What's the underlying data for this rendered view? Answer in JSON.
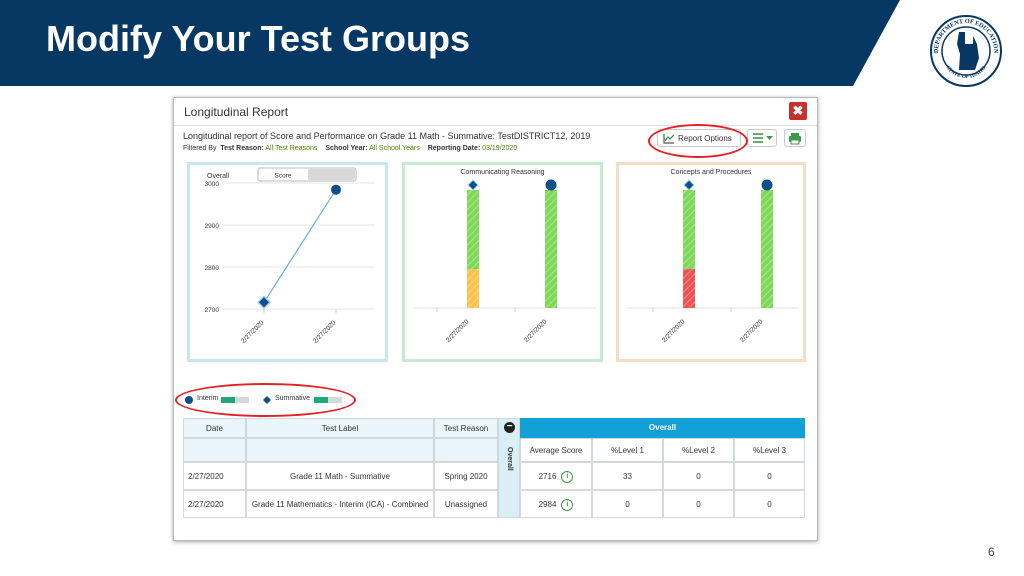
{
  "slide": {
    "title": "Modify Your Test Groups",
    "page_number": "6",
    "seal_top_text": "DEPARTMENT OF EDUCATION",
    "seal_bottom_text": "STATE OF IDAHO"
  },
  "colors": {
    "title_bar": "#073763",
    "highlight_ring": "#e32227",
    "close": "#c9302c",
    "overall_header": "#12a0d7",
    "green": "#7ed957",
    "orange": "#ffc04d",
    "red": "#f05252",
    "marker_blue": "#0b4f8c"
  },
  "report": {
    "title": "Longitudinal Report",
    "close_icon": "x-icon",
    "subtitle": "Longitudinal report of Score and Performance on Grade 11 Math - Summative: TestDISTRICT12, 2019",
    "filter_label": "Filtered By",
    "test_reason_label": "Test Reason:",
    "test_reason_value": "All Test Reasons",
    "school_year_label": "School Year:",
    "school_year_value": "All School Years",
    "reporting_date_label": "Reporting Date:",
    "reporting_date_value": "03/19/2020",
    "report_options_label": "Report Options",
    "report_options_icon": "line-chart-icon",
    "settings_icon": "list-settings-icon",
    "print_icon": "print-icon"
  },
  "overall_panel": {
    "label": "Overall",
    "toggle_label": "Score",
    "y_ticks": [
      "3000",
      "2900",
      "2800",
      "2700"
    ],
    "x_labels": [
      "2/27/2020",
      "2/27/2020"
    ]
  },
  "legend": {
    "interim": "Interim",
    "summative": "Summative"
  },
  "chart_data": [
    {
      "type": "line",
      "title": "Overall",
      "x": [
        "2/27/2020",
        "2/27/2020"
      ],
      "series": [
        {
          "name": "Summative",
          "values": [
            2716,
            null
          ]
        },
        {
          "name": "Interim",
          "values": [
            null,
            2984
          ]
        }
      ],
      "ylim": [
        2700,
        3000
      ],
      "y_ticks": [
        2700,
        2800,
        2900,
        3000
      ]
    },
    {
      "type": "bar",
      "title": "Communicating Reasoning",
      "categories": [
        "2/27/2020",
        "2/27/2020"
      ],
      "stacks": [
        [
          {
            "level": "below",
            "color": "orange",
            "fraction": 0.33
          },
          {
            "level": "above",
            "color": "green",
            "fraction": 0.67
          }
        ],
        [
          {
            "level": "above",
            "color": "green",
            "fraction": 1.0
          }
        ]
      ]
    },
    {
      "type": "bar",
      "title": "Concepts and Procedures",
      "categories": [
        "2/27/2020",
        "2/27/2020"
      ],
      "stacks": [
        [
          {
            "level": "below",
            "color": "red",
            "fraction": 0.33
          },
          {
            "level": "above",
            "color": "green",
            "fraction": 0.67
          }
        ],
        [
          {
            "level": "above",
            "color": "green",
            "fraction": 1.0
          }
        ]
      ]
    }
  ],
  "table": {
    "headers": {
      "date": "Date",
      "test_label": "Test Label",
      "test_reason": "Test Reason",
      "overall_side": "Overall",
      "overall": "Overall"
    },
    "sub_headers": [
      "Average Score",
      "%Level 1",
      "%Level 2",
      "%Level 3"
    ],
    "rows": [
      {
        "date": "2/27/2020",
        "test_label": "Grade 11 Math - Summative",
        "test_reason": "Spring 2020",
        "avg_score": "2716",
        "level1": "33",
        "level2": "0",
        "level3": "0"
      },
      {
        "date": "2/27/2020",
        "test_label": "Grade 11 Mathematics - Interim (ICA) - Combined",
        "test_reason": "Unassigned",
        "avg_score": "2984",
        "level1": "0",
        "level2": "0",
        "level3": "0"
      }
    ]
  }
}
